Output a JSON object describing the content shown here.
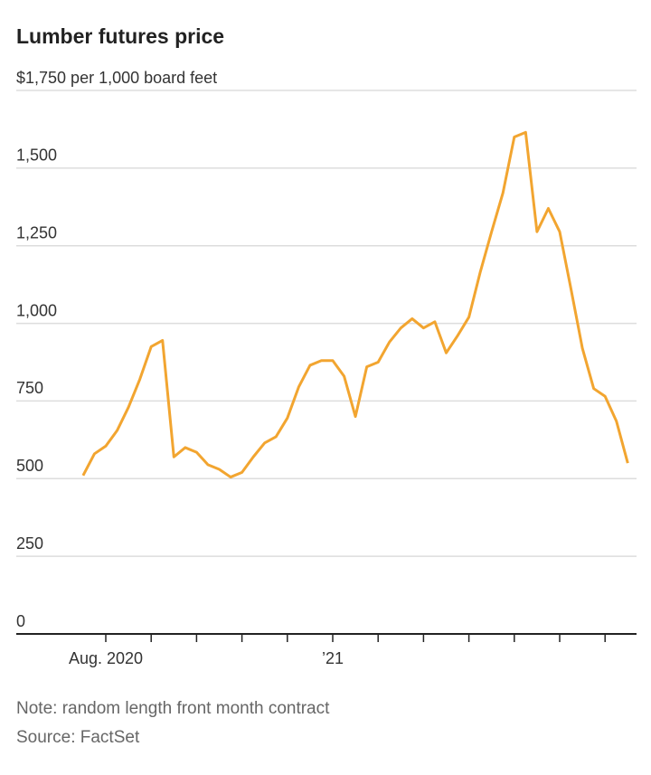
{
  "chart_data": {
    "type": "line",
    "title": "Lumber futures price",
    "note": "Note: random length front month contract",
    "source": "Source: FactSet",
    "categories": [
      null,
      null,
      "Aug. 2020",
      null,
      null,
      null,
      null,
      null,
      null,
      null,
      null,
      null,
      null,
      null,
      null,
      null,
      null,
      null,
      null,
      null,
      null,
      null,
      "’21",
      null,
      null,
      null,
      null,
      null,
      null,
      null,
      null,
      null,
      null,
      null,
      null,
      null,
      null,
      null,
      null,
      null,
      null,
      null,
      null,
      null,
      null,
      null,
      null,
      null,
      null
    ],
    "series": [
      {
        "color": "#f2a530",
        "values": [
          510,
          580,
          605,
          655,
          730,
          820,
          925,
          945,
          570,
          600,
          585,
          545,
          530,
          505,
          520,
          570,
          615,
          635,
          695,
          795,
          865,
          880,
          880,
          830,
          700,
          860,
          875,
          940,
          985,
          1015,
          985,
          1005,
          905,
          960,
          1020,
          1165,
          1295,
          1420,
          1600,
          1615,
          1295,
          1370,
          1295,
          1110,
          920,
          790,
          765,
          685,
          550
        ]
      }
    ],
    "ylim": [
      0,
      1750
    ],
    "yticks": [
      0,
      250,
      {
        "value": 500,
        "label": "500"
      },
      {
        "value": 750,
        "label": "750"
      },
      {
        "value": 1000,
        "label": "1,000"
      },
      {
        "value": 1250,
        "label": "1,250"
      },
      {
        "value": 1500,
        "label": "1,500"
      },
      {
        "value": 1750,
        "label": "$1,750 per 1,000 board feet"
      }
    ],
    "grid": true
  }
}
